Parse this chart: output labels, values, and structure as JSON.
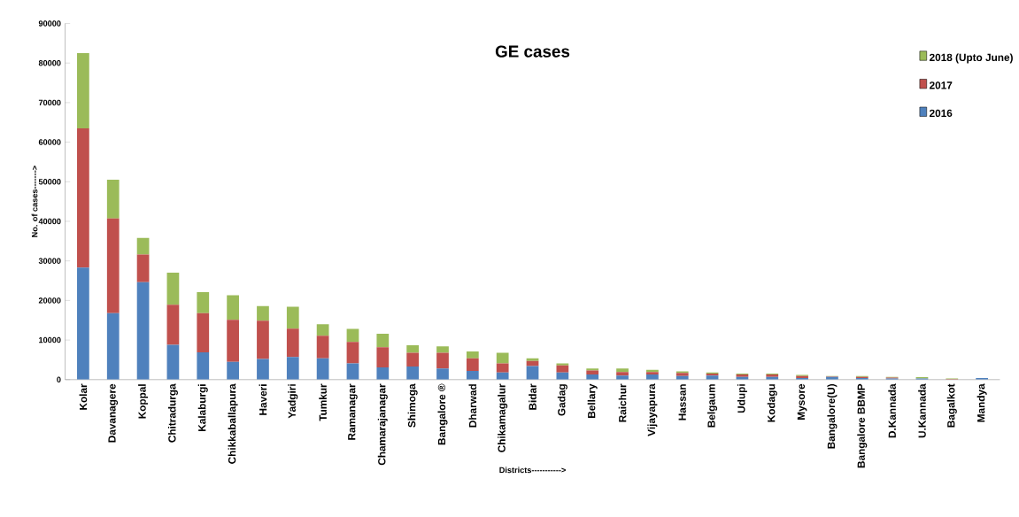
{
  "chart_data": {
    "type": "bar",
    "title": "GE cases",
    "xlabel": "Districts----------->",
    "ylabel": "No. of cases------->",
    "categories": [
      "Kolar",
      "Davanagere",
      "Koppal",
      "Chitradurga",
      "Kalaburgi",
      "Chikkaballapura",
      "Haveri",
      "Yadgiri",
      "Tumkur",
      "Ramanagar",
      "Chamarajanagar",
      "Shimoga",
      "Bangalore ®",
      "Dharwad",
      "Chikamagalur",
      "Bidar",
      "Gadag",
      "Bellary",
      "Raichur",
      "Vijayapura",
      "Hassan",
      "Belgaum",
      "Udupi",
      "Kodagu",
      "Mysore",
      "Bangalore(U)",
      "Bangalore BBMP",
      "D.Kannada",
      "U.Kannada",
      "Bagalkot",
      "Mandya"
    ],
    "stacked": true,
    "legend": "top right",
    "grid": false,
    "ylim": [
      0,
      90000
    ],
    "yticks": [
      0,
      10000,
      20000,
      30000,
      40000,
      50000,
      60000,
      70000,
      80000,
      90000
    ],
    "series": [
      {
        "name": "2016",
        "color": "#4f81bd",
        "values": [
          28300,
          16800,
          24600,
          8800,
          6900,
          4500,
          5200,
          5700,
          5400,
          4100,
          3100,
          3300,
          2800,
          2200,
          1800,
          3400,
          1800,
          1300,
          1000,
          1300,
          900,
          1000,
          700,
          700,
          400,
          700,
          400,
          300,
          300,
          null,
          400
        ]
      },
      {
        "name": "2017",
        "color": "#c0504d",
        "values": [
          35200,
          23900,
          7000,
          10100,
          9900,
          10600,
          9700,
          7200,
          5700,
          5400,
          5100,
          3500,
          4000,
          3200,
          2300,
          1300,
          1800,
          1000,
          900,
          600,
          800,
          500,
          600,
          600,
          500,
          100,
          300,
          200,
          null,
          100,
          0
        ]
      },
      {
        "name": "2018 (Upto June)",
        "color": "#9bbb59",
        "values": [
          19000,
          9800,
          4200,
          8100,
          5300,
          6200,
          3700,
          5500,
          2900,
          3300,
          3400,
          1900,
          1600,
          1700,
          2700,
          700,
          500,
          500,
          900,
          600,
          400,
          300,
          200,
          200,
          300,
          100,
          200,
          200,
          300,
          200,
          0
        ]
      }
    ]
  }
}
